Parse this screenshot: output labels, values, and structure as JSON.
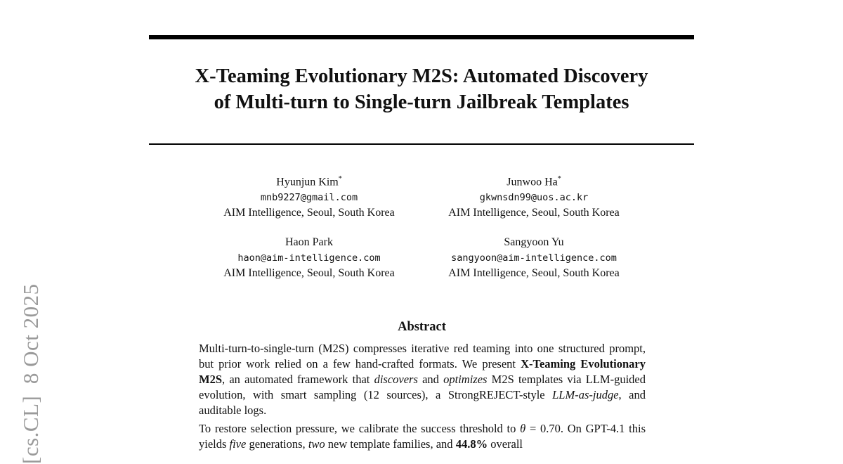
{
  "side_stamp": "[cs.CL]  8 Oct 2025",
  "title": {
    "line1": "X-Teaming Evolutionary M2S: Automated Discovery",
    "line2": "of Multi-turn to Single-turn Jailbreak Templates"
  },
  "authors": [
    {
      "name": "Hyunjun Kim",
      "mark": "*",
      "email": "mnb9227@gmail.com",
      "affiliation": "AIM Intelligence, Seoul, South Korea"
    },
    {
      "name": "Junwoo Ha",
      "mark": "*",
      "email": "gkwnsdn99@uos.ac.kr",
      "affiliation": "AIM Intelligence, Seoul, South Korea"
    },
    {
      "name": "Haon Park",
      "mark": "",
      "email": "haon@aim-intelligence.com",
      "affiliation": "AIM Intelligence, Seoul, South Korea"
    },
    {
      "name": "Sangyoon Yu",
      "mark": "",
      "email": "sangyoon@aim-intelligence.com",
      "affiliation": "AIM Intelligence, Seoul, South Korea"
    }
  ],
  "abstract": {
    "heading": "Abstract",
    "p1": {
      "a": "Multi-turn-to-single-turn (M2S) compresses iterative red teaming into one structured prompt, but prior work relied on a few hand-crafted formats. We present ",
      "b_bold": "X-Teaming Evolutionary M2S",
      "c": ", an automated framework that ",
      "d_ital": "discovers",
      "e": " and ",
      "f_ital": "optimizes",
      "g": " M2S templates via LLM-guided evolution, with smart sampling (12 sources), a StrongREJECT-style ",
      "h_ital": "LLM-as-judge",
      "i": ", and auditable logs."
    },
    "p2": {
      "a": "To restore selection pressure, we calibrate the success threshold to ",
      "theta": "θ",
      "b": " = 0.70. On GPT-4.1 this yields ",
      "c_ital": "five",
      "d": " generations, ",
      "e_ital": "two",
      "f": " new template families, and ",
      "g_bold": "44.8%",
      "h": " overall"
    }
  }
}
